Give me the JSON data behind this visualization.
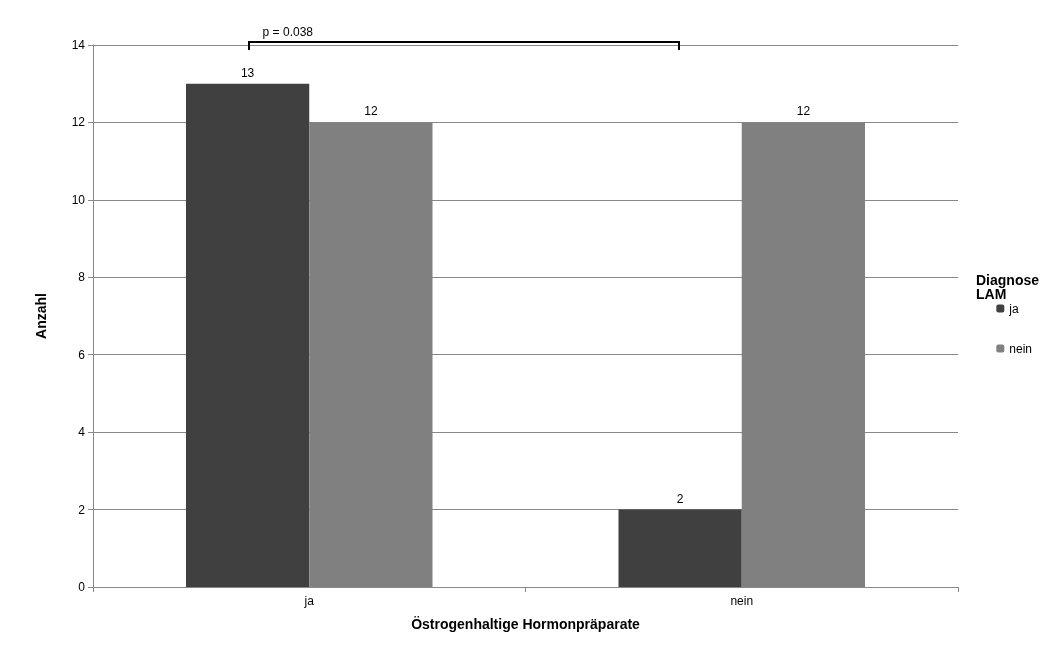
{
  "chart_data": {
    "type": "bar",
    "xlabel": "Östrogenhaltige Hormonpräparate",
    "ylabel": "Anzahl",
    "legend_title": "Diagnose LAM",
    "categories": [
      "ja",
      "nein"
    ],
    "series": [
      {
        "name": "ja",
        "color": "#404040",
        "values": [
          13,
          2
        ]
      },
      {
        "name": "nein",
        "color": "#808080",
        "values": [
          12,
          12
        ]
      }
    ],
    "ylim": [
      0,
      14
    ],
    "yticks": [
      0,
      2,
      4,
      6,
      8,
      10,
      12,
      14
    ],
    "grid": "y",
    "legend": "right",
    "data_labels": true,
    "annotations": [
      "p = 0.038"
    ]
  }
}
